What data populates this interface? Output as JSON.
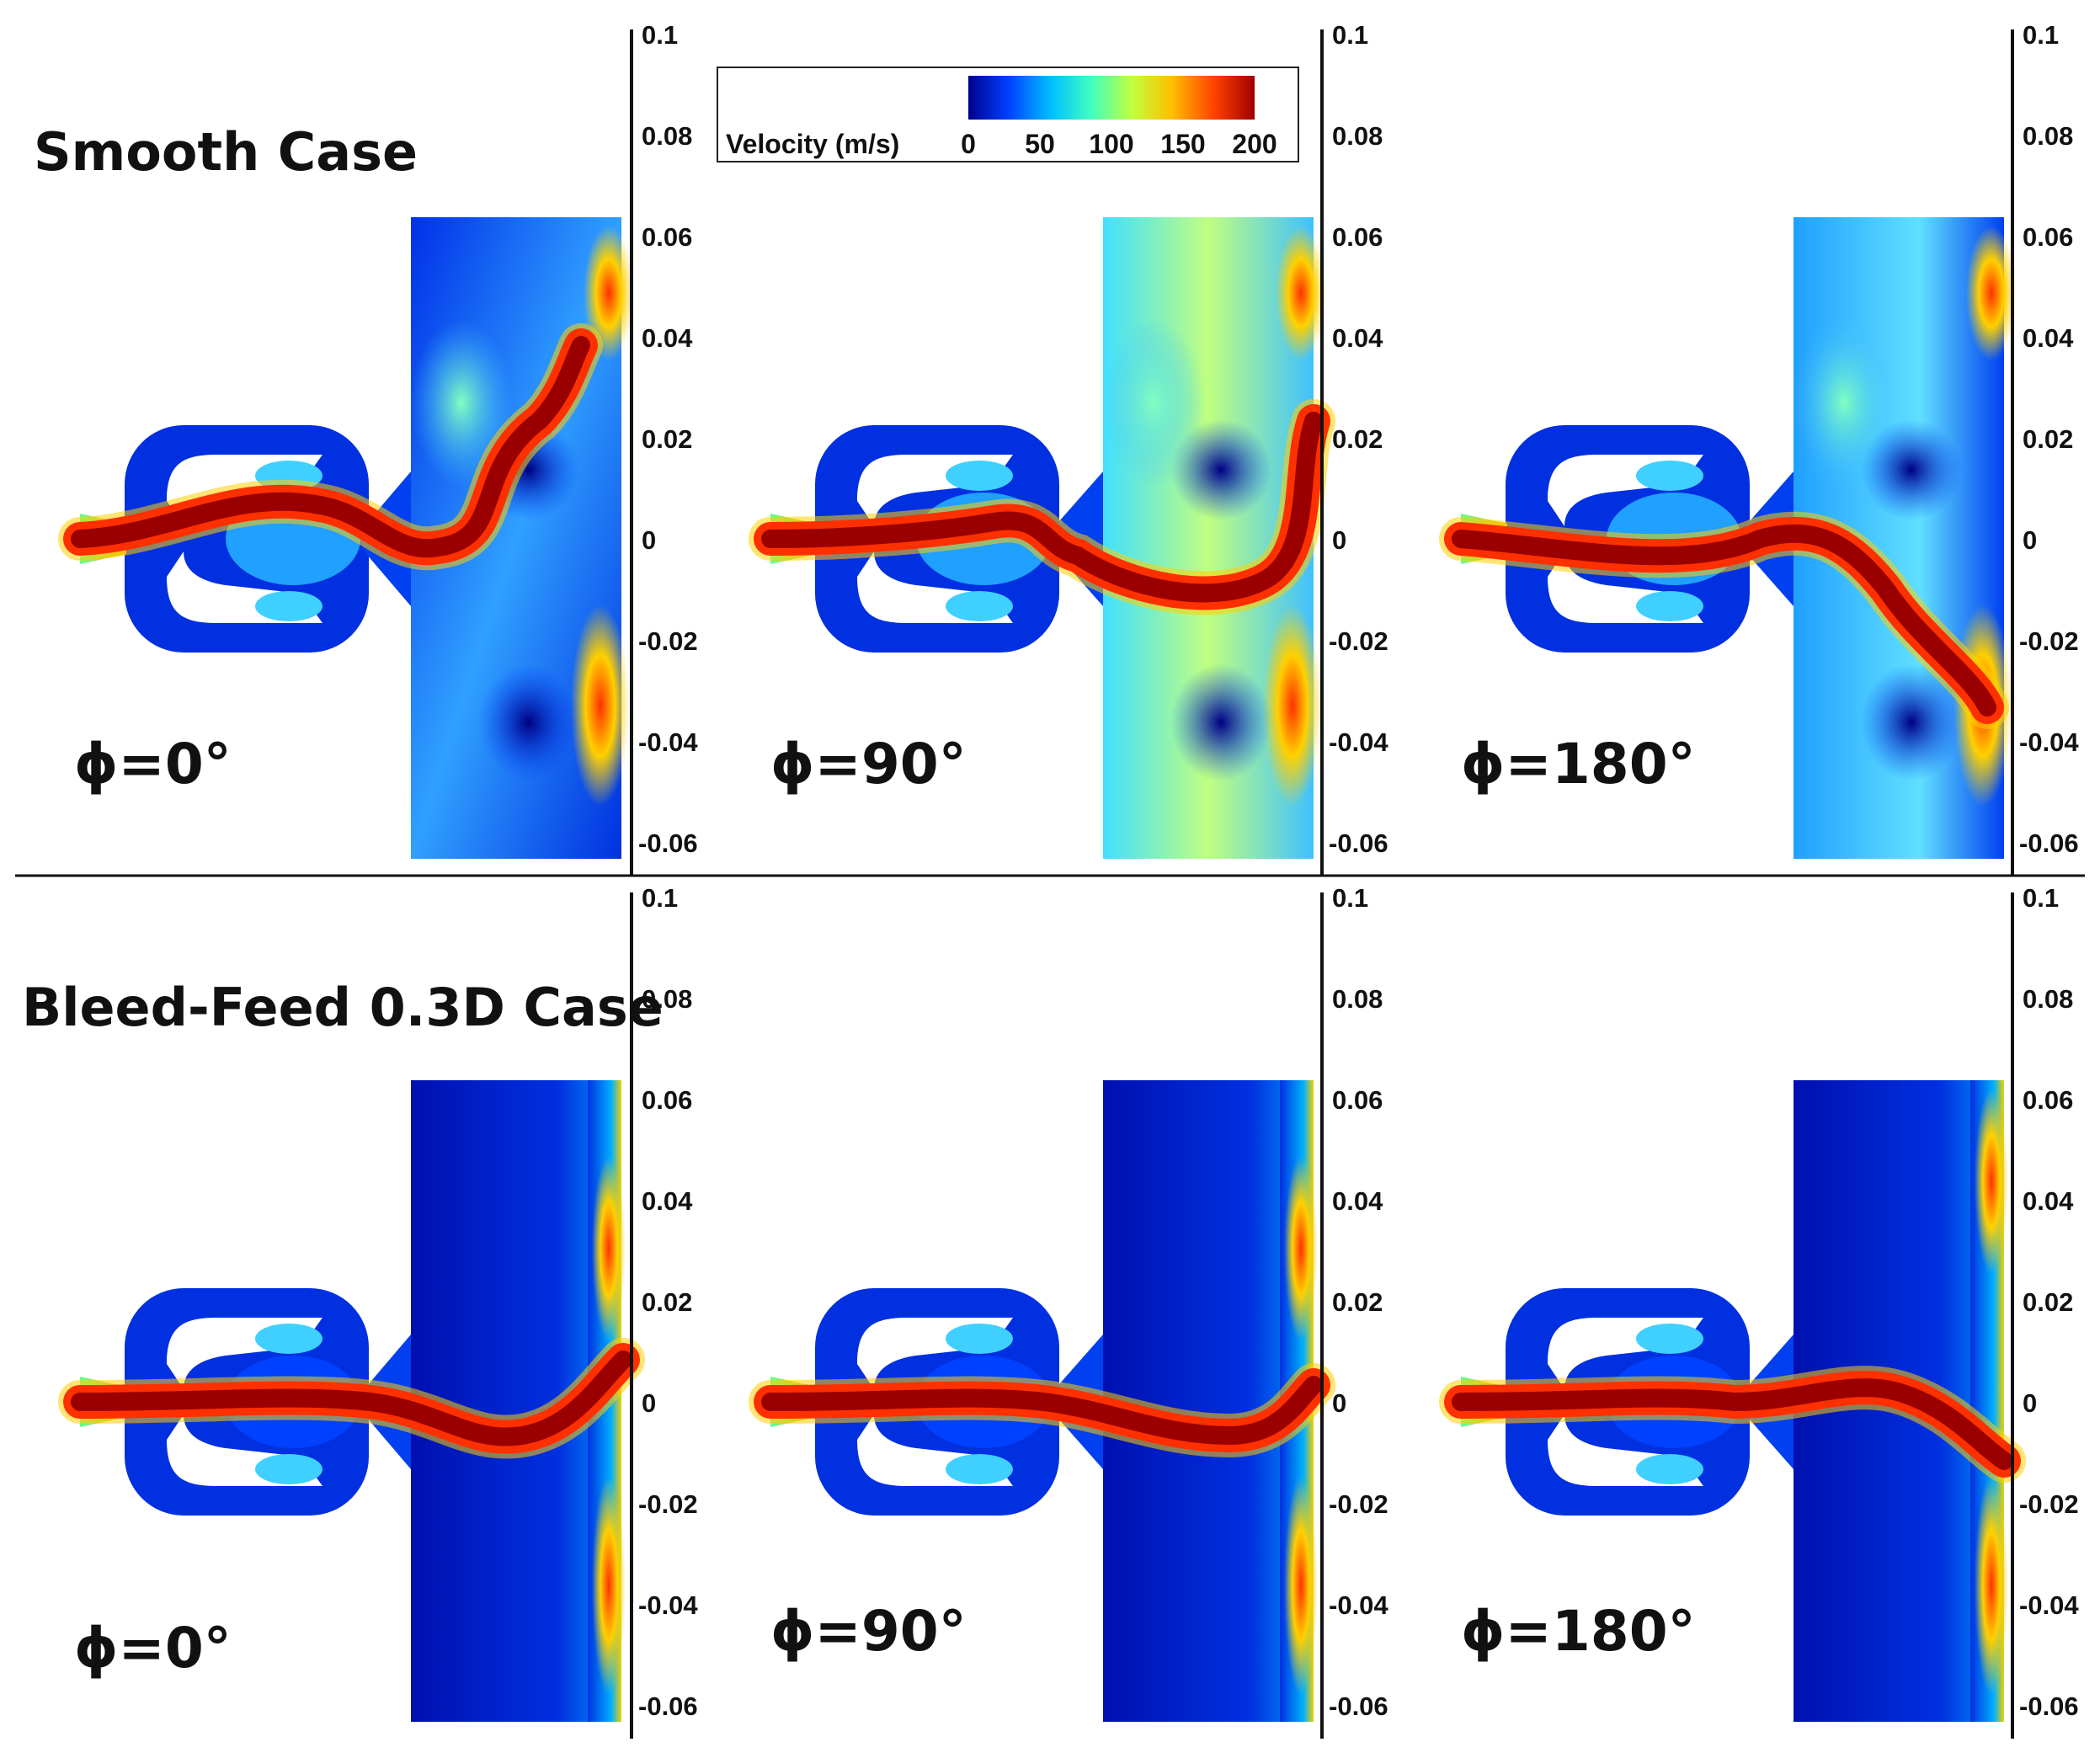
{
  "rows": [
    {
      "title": "Smooth Case",
      "panels": [
        {
          "phase_label": "ϕ=0°"
        },
        {
          "phase_label": "ϕ=90°"
        },
        {
          "phase_label": "ϕ=180°"
        }
      ]
    },
    {
      "title": "Bleed-Feed 0.3D Case",
      "panels": [
        {
          "phase_label": "ϕ=0°"
        },
        {
          "phase_label": "ϕ=90°"
        },
        {
          "phase_label": "ϕ=180°"
        }
      ]
    }
  ],
  "axis": {
    "ticks": [
      "0.1",
      "0.08",
      "0.06",
      "0.04",
      "0.02",
      "0",
      "-0.02",
      "-0.04",
      "-0.06"
    ]
  },
  "colorbar": {
    "label": "Velocity (m/s)",
    "ticks": [
      "0",
      "50",
      "100",
      "150",
      "200"
    ],
    "colors": [
      "#00008f",
      "#0040ff",
      "#00c0ff",
      "#40ffc0",
      "#c0ff40",
      "#ffc000",
      "#ff4000",
      "#a00000"
    ]
  }
}
